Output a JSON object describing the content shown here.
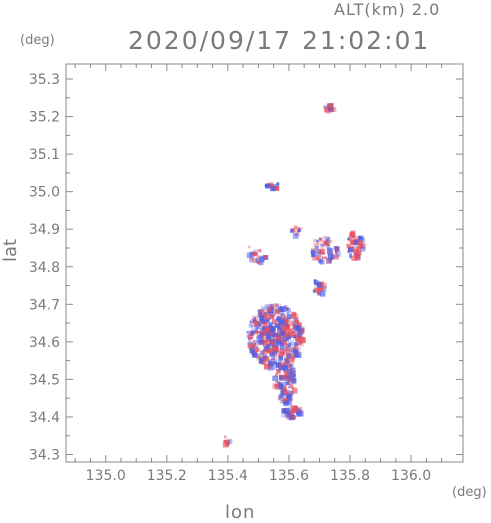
{
  "header": {
    "altitude": "ALT(km)  2.0",
    "timestamp": "2020/09/17  21:02:01"
  },
  "axes": {
    "y_unit": "(deg)",
    "x_unit": "(deg)",
    "x_label": "lon",
    "y_label": "lat",
    "x_ticks": [
      "135.0",
      "135.2",
      "135.4",
      "135.6",
      "135.8",
      "136.0"
    ],
    "y_ticks": [
      "35.3",
      "35.2",
      "35.1",
      "35.0",
      "34.9",
      "34.8",
      "34.7",
      "34.6",
      "34.5",
      "34.4",
      "34.3"
    ],
    "x_range": [
      134.87,
      136.17
    ],
    "y_range": [
      34.28,
      35.34
    ]
  },
  "colors": {
    "positive": "#e8505c",
    "negative": "#4f5fe8",
    "axis": "#7a7a7a"
  },
  "echo_regions": [
    {
      "lon": 135.73,
      "lat": 35.23
    },
    {
      "lon": 135.55,
      "lat": 35.02
    },
    {
      "lon": 135.62,
      "lat": 34.9
    },
    {
      "lon": 135.71,
      "lat": 34.85
    },
    {
      "lon": 135.81,
      "lat": 34.86
    },
    {
      "lon": 135.69,
      "lat": 34.75
    },
    {
      "lon": 135.55,
      "lat": 34.62
    },
    {
      "lon": 135.58,
      "lat": 34.5
    },
    {
      "lon": 135.6,
      "lat": 34.42
    },
    {
      "lon": 135.49,
      "lat": 34.84
    },
    {
      "lon": 135.39,
      "lat": 34.34
    }
  ]
}
